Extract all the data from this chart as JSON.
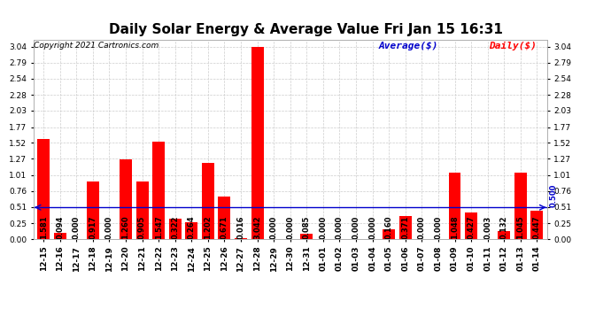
{
  "title": "Daily Solar Energy & Average Value Fri Jan 15 16:31",
  "copyright": "Copyright 2021 Cartronics.com",
  "legend_average": "Average($)",
  "legend_daily": "Daily($)",
  "categories": [
    "12-15",
    "12-16",
    "12-17",
    "12-18",
    "12-19",
    "12-20",
    "12-21",
    "12-22",
    "12-23",
    "12-24",
    "12-25",
    "12-26",
    "12-27",
    "12-28",
    "12-29",
    "12-30",
    "12-31",
    "01-01",
    "01-02",
    "01-03",
    "01-04",
    "01-05",
    "01-06",
    "01-07",
    "01-08",
    "01-09",
    "01-10",
    "01-11",
    "01-12",
    "01-13",
    "01-14"
  ],
  "values": [
    1.581,
    0.094,
    0.0,
    0.917,
    0.0,
    1.26,
    0.905,
    1.547,
    0.322,
    0.264,
    1.202,
    0.671,
    0.016,
    3.042,
    0.0,
    0.0,
    0.085,
    0.0,
    0.0,
    0.0,
    0.0,
    0.16,
    0.371,
    0.0,
    0.0,
    1.048,
    0.427,
    0.003,
    0.132,
    1.045,
    0.447
  ],
  "average_line": 0.5,
  "average_annotation": "0.500",
  "bar_color": "#ff0000",
  "average_color": "#0000cc",
  "yticks": [
    0.0,
    0.25,
    0.51,
    0.76,
    1.01,
    1.27,
    1.52,
    1.77,
    2.03,
    2.28,
    2.54,
    2.79,
    3.04
  ],
  "ylim": [
    0,
    3.15
  ],
  "title_fontsize": 11,
  "tick_fontsize": 6.5,
  "label_fontsize": 6,
  "copyright_fontsize": 6.5,
  "legend_fontsize": 8,
  "bg_color": "#ffffff",
  "grid_color": "#cccccc"
}
